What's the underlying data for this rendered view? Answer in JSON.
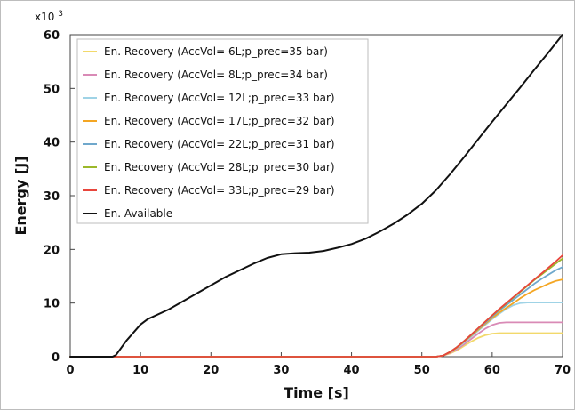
{
  "chart_data": {
    "type": "line",
    "title": "",
    "xlabel": "Time [s]",
    "ylabel": "Energy [J]",
    "y_multiplier_label": "x10 3",
    "y_multiplier_base": "x10",
    "y_multiplier_exp": "3",
    "xlim": [
      0,
      70
    ],
    "ylim": [
      0,
      60
    ],
    "xticks": [
      0,
      10,
      20,
      30,
      40,
      50,
      60,
      70
    ],
    "yticks": [
      0,
      10,
      20,
      30,
      40,
      50,
      60
    ],
    "xtick_labels": [
      "0",
      "10",
      "20",
      "30",
      "40",
      "50",
      "60",
      "70"
    ],
    "ytick_labels": [
      "0",
      "10",
      "20",
      "30",
      "40",
      "50",
      "60"
    ],
    "grid": false,
    "legend_position": "top-left",
    "series": [
      {
        "name": "En. Recovery (AccVol= 6L;p_prec=35 bar)",
        "color": "#f2d96b",
        "x": [
          0,
          52,
          53,
          54,
          55,
          56,
          57,
          58,
          59,
          60,
          61,
          62,
          65,
          70
        ],
        "y": [
          0,
          0,
          0.2,
          0.6,
          1.2,
          2.0,
          2.8,
          3.5,
          4.0,
          4.3,
          4.4,
          4.4,
          4.4,
          4.4
        ]
      },
      {
        "name": "En. Recovery (AccVol= 8L;p_prec=34 bar)",
        "color": "#d98ab6",
        "x": [
          0,
          52,
          53,
          54,
          55,
          56,
          57,
          58,
          59,
          60,
          61,
          62,
          65,
          70
        ],
        "y": [
          0,
          0,
          0.2,
          0.7,
          1.4,
          2.3,
          3.3,
          4.3,
          5.2,
          5.9,
          6.3,
          6.4,
          6.4,
          6.4
        ]
      },
      {
        "name": "En. Recovery (AccVol= 12L;p_prec=33 bar)",
        "color": "#9fd3e6",
        "x": [
          0,
          52,
          53,
          54,
          55,
          56,
          57,
          58,
          59,
          60,
          61,
          62,
          63,
          64,
          65,
          70
        ],
        "y": [
          0,
          0,
          0.2,
          0.8,
          1.6,
          2.6,
          3.7,
          4.8,
          5.9,
          7.0,
          8.0,
          8.9,
          9.6,
          10.0,
          10.1,
          10.1
        ]
      },
      {
        "name": "En. Recovery (AccVol= 17L;p_prec=32 bar)",
        "color": "#f4a623",
        "x": [
          0,
          52,
          53,
          54,
          55,
          56,
          57,
          58,
          59,
          60,
          61,
          62,
          63,
          64,
          65,
          66,
          67,
          68,
          69,
          70
        ],
        "y": [
          0,
          0,
          0.2,
          0.8,
          1.7,
          2.8,
          3.9,
          5.0,
          6.1,
          7.2,
          8.2,
          9.1,
          10.0,
          10.9,
          11.7,
          12.4,
          13.0,
          13.6,
          14.1,
          14.4
        ]
      },
      {
        "name": "En. Recovery (AccVol= 22L;p_prec=31 bar)",
        "color": "#6fa8cc",
        "x": [
          0,
          52,
          53,
          54,
          55,
          56,
          57,
          58,
          59,
          60,
          61,
          62,
          63,
          64,
          65,
          66,
          67,
          68,
          69,
          70
        ],
        "y": [
          0,
          0,
          0.2,
          0.9,
          1.8,
          2.9,
          4.0,
          5.2,
          6.3,
          7.5,
          8.6,
          9.6,
          10.6,
          11.6,
          12.6,
          13.6,
          14.5,
          15.3,
          16.1,
          16.7
        ]
      },
      {
        "name": "En. Recovery (AccVol= 28L;p_prec=30 bar)",
        "color": "#9cb82a",
        "x": [
          0,
          52,
          53,
          54,
          55,
          56,
          57,
          58,
          59,
          60,
          61,
          62,
          63,
          64,
          65,
          66,
          67,
          68,
          69,
          70
        ],
        "y": [
          0,
          0,
          0.2,
          0.9,
          1.8,
          2.9,
          4.1,
          5.3,
          6.5,
          7.7,
          8.8,
          9.9,
          11.0,
          12.1,
          13.2,
          14.3,
          15.3,
          16.3,
          17.3,
          18.3
        ]
      },
      {
        "name": "En. Recovery (AccVol= 33L;p_prec=29 bar)",
        "color": "#e8453c",
        "x": [
          0,
          52,
          53,
          54,
          55,
          56,
          57,
          58,
          59,
          60,
          61,
          62,
          63,
          64,
          65,
          66,
          67,
          68,
          69,
          70
        ],
        "y": [
          0,
          0,
          0.2,
          0.9,
          1.8,
          2.9,
          4.1,
          5.3,
          6.5,
          7.7,
          8.9,
          10.0,
          11.1,
          12.2,
          13.3,
          14.4,
          15.5,
          16.6,
          17.7,
          18.9
        ]
      },
      {
        "name": "En. Available",
        "color": "#111111",
        "x": [
          0,
          6,
          6.5,
          8,
          10,
          11,
          14,
          18,
          22,
          26,
          28,
          30,
          32,
          34,
          36,
          38,
          40,
          42,
          44,
          46,
          48,
          50,
          52,
          54,
          56,
          58,
          60,
          62,
          64,
          66,
          68,
          70
        ],
        "y": [
          0,
          0,
          0.3,
          3.0,
          6.0,
          7.0,
          8.8,
          11.8,
          14.8,
          17.3,
          18.4,
          19.1,
          19.3,
          19.4,
          19.7,
          20.3,
          21.0,
          22.0,
          23.3,
          24.8,
          26.5,
          28.5,
          31.0,
          34.0,
          37.2,
          40.5,
          43.8,
          47.0,
          50.2,
          53.5,
          56.7,
          60.0
        ]
      }
    ]
  }
}
